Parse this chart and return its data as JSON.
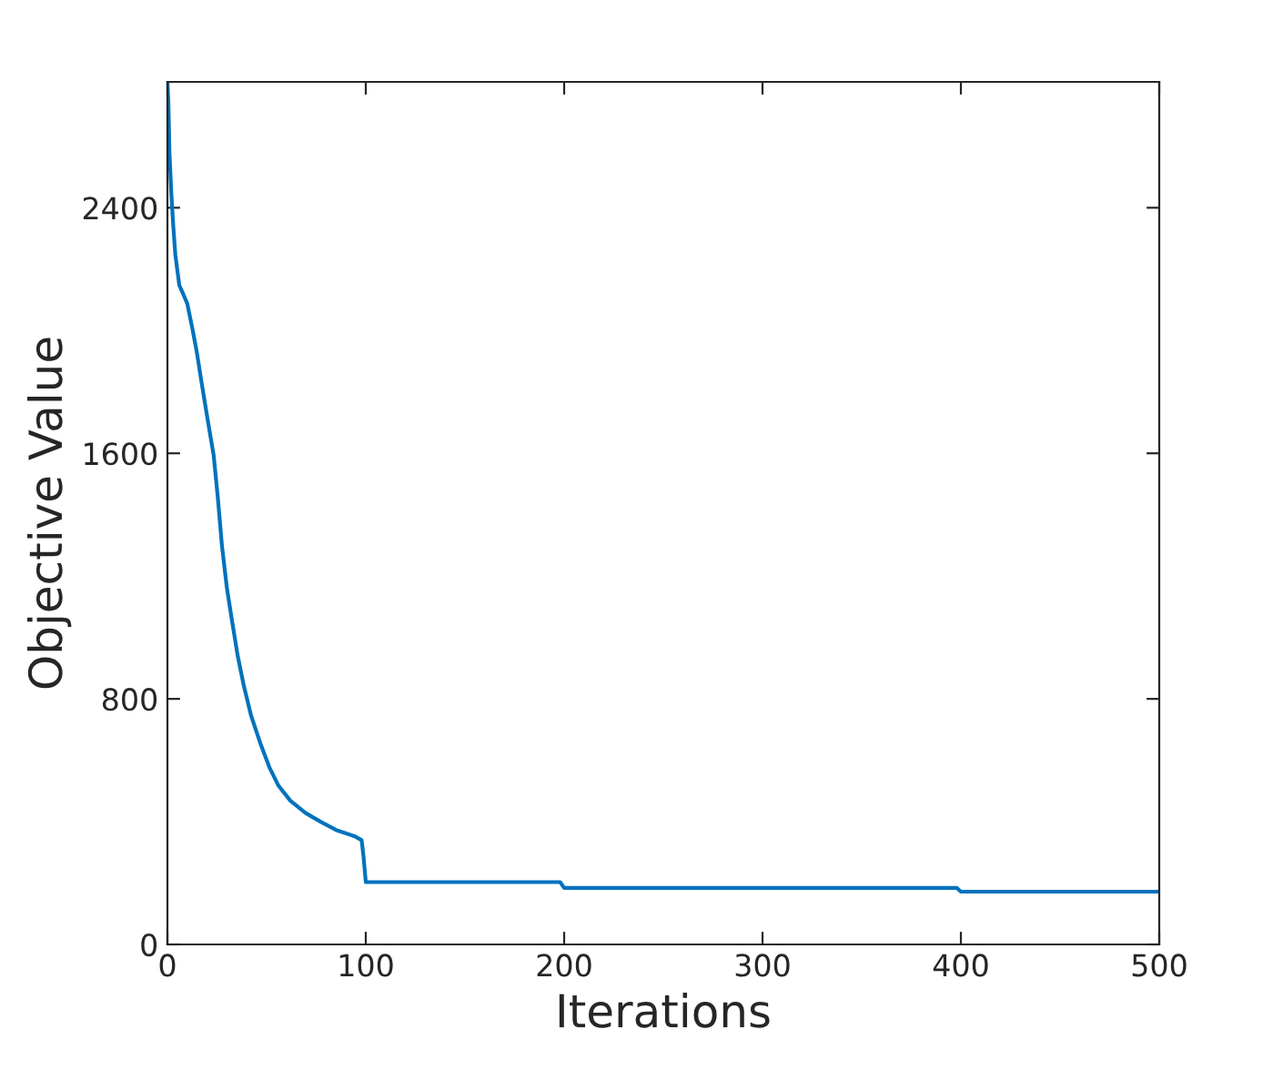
{
  "chart_data": {
    "type": "line",
    "xlabel": "Iterations",
    "ylabel": "Objective Value",
    "series": [
      {
        "color": "#0072bd",
        "x": [
          0,
          0.5,
          1,
          2,
          3,
          4,
          6,
          8,
          10,
          12.5,
          14.8,
          17.2,
          20.2,
          23.3,
          25.4,
          27.5,
          30,
          32.4,
          35.4,
          38.5,
          42.2,
          46.8,
          51.4,
          56,
          62,
          69.7,
          77.4,
          85,
          94.2,
          97.9,
          98.8,
          100,
          198,
          200,
          398,
          400,
          500
        ],
        "values": [
          2810,
          2740,
          2582,
          2443,
          2335,
          2246,
          2147,
          2118,
          2088,
          2009,
          1930,
          1831,
          1713,
          1594,
          1456,
          1298,
          1160,
          1061,
          941,
          843,
          745,
          656,
          577,
          517,
          468,
          428,
          399,
          373,
          353,
          340,
          290,
          203,
          203,
          184,
          184,
          172,
          172
        ]
      }
    ],
    "xlim": [
      0,
      500
    ],
    "ylim": [
      0,
      2810
    ],
    "xticks": [
      0,
      100,
      200,
      300,
      400,
      500
    ],
    "yticks": [
      0,
      800,
      1600,
      2400
    ],
    "grid": false,
    "legend": false
  }
}
